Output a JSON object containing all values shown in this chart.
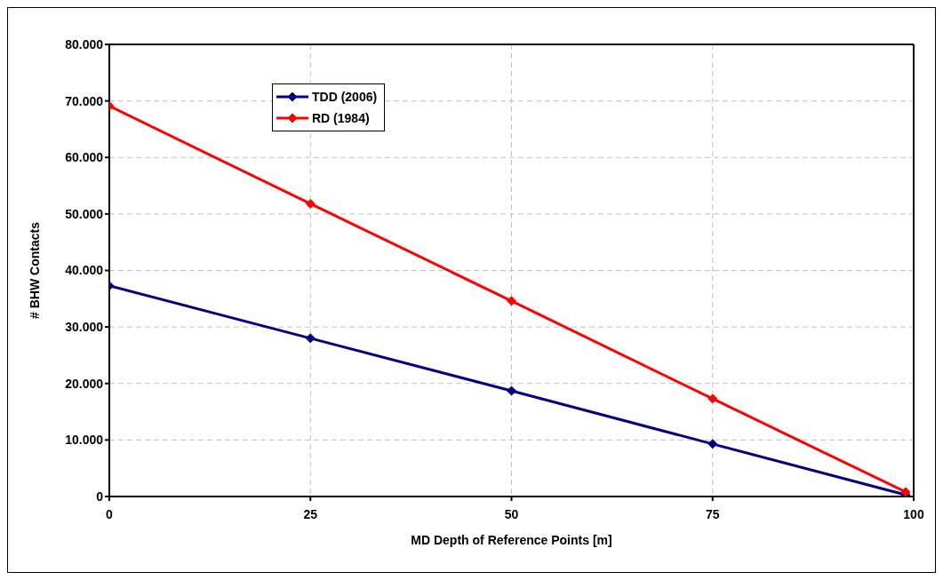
{
  "chart_data": {
    "type": "line",
    "xlabel": "MD Depth of Reference Points [m]",
    "ylabel": "# BHW Contacts",
    "x": [
      0,
      25,
      50,
      75,
      99
    ],
    "series": [
      {
        "name": "TDD (2006)",
        "color": "#000080",
        "values": [
          37300,
          28000,
          18700,
          9300,
          300
        ]
      },
      {
        "name": "RD (1984)",
        "color": "#ff0000",
        "values": [
          69100,
          51800,
          34600,
          17300,
          800
        ]
      }
    ],
    "xlim": [
      0,
      100
    ],
    "xticks": [
      0,
      25,
      50,
      75,
      100
    ],
    "ylim": [
      0,
      80000
    ],
    "yticks": [
      {
        "value": 0,
        "label": "0"
      },
      {
        "value": 10000,
        "label": "10.000"
      },
      {
        "value": 20000,
        "label": "20.000"
      },
      {
        "value": 30000,
        "label": "30.000"
      },
      {
        "value": 40000,
        "label": "40.000"
      },
      {
        "value": 50000,
        "label": "50.000"
      },
      {
        "value": 60000,
        "label": "60.000"
      },
      {
        "value": 70000,
        "label": "70.000"
      },
      {
        "value": 80000,
        "label": "80.000"
      }
    ],
    "grid": true,
    "legend": "top left",
    "marker": "diamond",
    "line_style": "solid"
  }
}
